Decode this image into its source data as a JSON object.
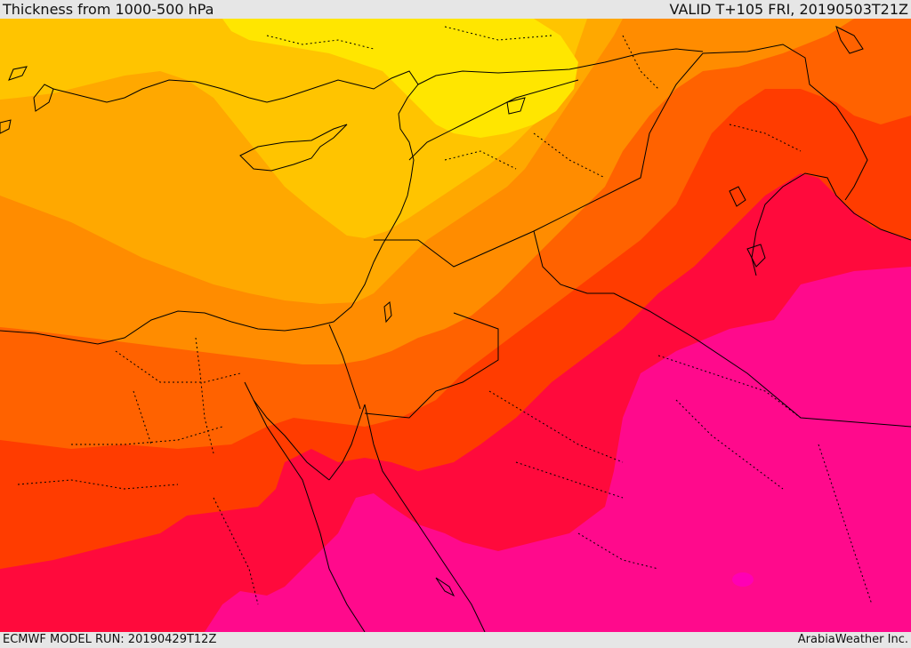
{
  "header": {
    "title": "Thickness from 1000-500 hPa",
    "valid_time": "VALID T+105 FRI, 20190503T21Z"
  },
  "footer": {
    "model_run": "ECMWF MODEL RUN: 20190429T12Z",
    "credit": "ArabiaWeather Inc."
  },
  "map": {
    "colors": {
      "band_yellow": "#ffe600",
      "band_gold": "#ffc400",
      "band_light_orange": "#ffa800",
      "band_orange": "#ff8c00",
      "band_dark_orange": "#ff6200",
      "band_red_orange": "#ff3c00",
      "band_red": "#ff0a3c",
      "band_magenta": "#ff0a8c",
      "band_pink": "#ff00b4",
      "coastline": "#000000",
      "border": "#000000"
    }
  }
}
